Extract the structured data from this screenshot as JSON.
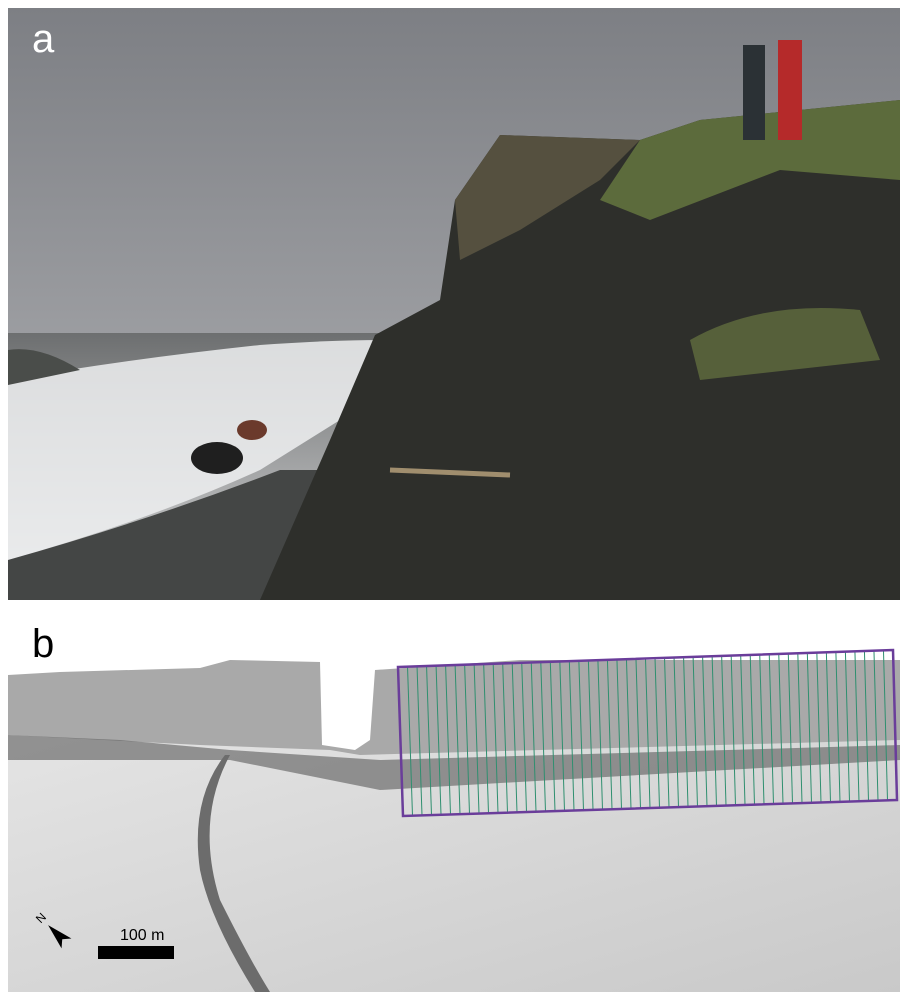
{
  "panels": [
    {
      "label": "a"
    },
    {
      "label": "b",
      "north": "N",
      "scale_bar": "100 m"
    }
  ]
}
